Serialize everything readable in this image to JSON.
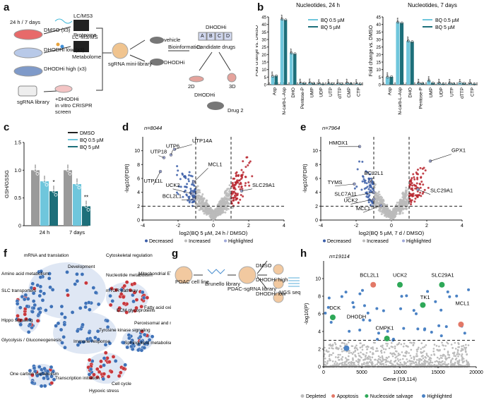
{
  "panels": {
    "a": "a",
    "b": "b",
    "c": "c",
    "d": "d",
    "e": "e",
    "f": "f",
    "g": "g",
    "h": "h"
  },
  "panel_a": {
    "timepoints": "24 h / 7 days",
    "groups": [
      "DMSO (x3)",
      "DHODHi low (x3)",
      "DHODHi high (x3)"
    ],
    "platforms": [
      "LC/MS3",
      "LC-MS/MS"
    ],
    "outputs": [
      "Proteome",
      "Metabolome"
    ],
    "library": "sgRNA library",
    "screen": [
      "+DHODHi",
      "in vitro CRISPR",
      "screen"
    ],
    "mini_library": "sgRNA mini-library",
    "arms": [
      "vehicle",
      "DHODHi"
    ],
    "bioinformatics": "Bioinformatics",
    "dhodhi": "DHODHi",
    "abcd": [
      "A",
      "B",
      "C",
      "D"
    ],
    "candidate": "Candidate drugs",
    "models": [
      "2D",
      "3D"
    ],
    "drug2": "Drug 2",
    "dhodhi2": "DHODHi"
  },
  "colors": {
    "bq05": "#6fc6dc",
    "bq5": "#1d6f7a",
    "dmso": "#222222",
    "grey": "#9a9a9a",
    "decreased": "#3b5ea8",
    "increased": "#b8262f",
    "highlighted": "#9fa9d8",
    "apoptosis": "#e27867",
    "salvage": "#2ea858",
    "highlight_h": "#4b82c4",
    "depleted": "#bbbbbb"
  },
  "chart_data": [
    {
      "id": "b-24h",
      "type": "bar",
      "title": "Nucleotides, 24 h",
      "ylabel": "Fold change vs. DMSO",
      "ylim": [
        0,
        45
      ],
      "yticks": [
        "0",
        "5",
        "10",
        "15",
        "20",
        "25",
        "30",
        "35",
        "40",
        "45"
      ],
      "categories": [
        "Asp",
        "N-carb-L-Asp",
        "DHO",
        "Pentose-P",
        "UMP",
        "UDP",
        "UTP",
        "dTTP",
        "CMP",
        "CTP"
      ],
      "series": [
        {
          "name": "BQ 0.5 µM",
          "values": [
            5.5,
            43.5,
            21,
            1.0,
            1.1,
            0.6,
            0.7,
            0.6,
            0.9,
            0.6
          ]
        },
        {
          "name": "BQ 5 µM",
          "values": [
            5.8,
            43.0,
            20.5,
            0.9,
            0.8,
            0.4,
            0.5,
            0.5,
            0.7,
            0.4
          ]
        }
      ],
      "stars": [
        "***",
        "***",
        "***",
        "***",
        "***",
        "***",
        "***",
        "***",
        "***",
        "***"
      ],
      "reference_line": 1
    },
    {
      "id": "b-7d",
      "type": "bar",
      "title": "Nucleotides, 7 days",
      "ylabel": "Fold change vs. DMSO",
      "ylim": [
        0,
        45
      ],
      "yticks": [
        "0",
        "5",
        "10",
        "15",
        "20",
        "25",
        "30",
        "35",
        "40",
        "45"
      ],
      "categories": [
        "Asp",
        "N-carb-L-Asp",
        "DHO",
        "Pentose-P",
        "UMP",
        "UDP",
        "UTP",
        "dTTP",
        "CTP"
      ],
      "series": [
        {
          "name": "BQ 0.5 µM",
          "values": [
            5.0,
            41.5,
            29.0,
            0.9,
            2.6,
            0.9,
            0.8,
            1.3,
            0.6
          ]
        },
        {
          "name": "BQ 5 µM",
          "values": [
            5.2,
            41.0,
            28.5,
            0.8,
            1.1,
            0.5,
            0.6,
            0.8,
            0.4
          ]
        }
      ],
      "stars": [
        "***",
        "***",
        "***",
        "***",
        "***",
        "***",
        "***",
        "**",
        "***"
      ],
      "reference_line": 1
    },
    {
      "id": "c",
      "type": "bar",
      "ylabel": "GSH/GSSG",
      "ylim": [
        0,
        1.5
      ],
      "yticks": [
        "0",
        "0.5",
        "1.0",
        "1.5"
      ],
      "categories": [
        "24 h",
        "7 days"
      ],
      "series": [
        {
          "name": "DMSO",
          "values": [
            1.0,
            1.0
          ]
        },
        {
          "name": "BQ 0.5 µM",
          "values": [
            0.8,
            0.75
          ]
        },
        {
          "name": "BQ 5 µM",
          "values": [
            0.62,
            0.35
          ]
        }
      ],
      "stars": [
        "",
        "",
        "*",
        "",
        "",
        "**"
      ]
    },
    {
      "id": "d",
      "type": "scatter",
      "n_label": "n=8044",
      "xlabel": "log2(BQ 5 µM, 24 h / DMSO)",
      "ylabel": "-log10(FDR)",
      "xlim": [
        -4,
        4
      ],
      "ylim": [
        0,
        12
      ],
      "xticks": [
        "-4",
        "-2",
        "0",
        "2",
        "4"
      ],
      "yticks": [
        "0",
        "2",
        "4",
        "6",
        "8",
        "10"
      ],
      "labels": [
        "UTP14A",
        "UTP6",
        "UTP18",
        "MCL1",
        "UTP11L",
        "UCK2",
        "BCL2L1",
        "SLC29A1"
      ],
      "legend": [
        "Decreased",
        "Increased",
        "Highlighted"
      ]
    },
    {
      "id": "e",
      "type": "scatter",
      "n_label": "n=7964",
      "xlabel": "log2(BQ 5 µM, 7 d / DMSO)",
      "ylabel": "-log10(FDR)",
      "xlim": [
        -4,
        4
      ],
      "ylim": [
        0,
        12
      ],
      "xticks": [
        "-4",
        "-2",
        "0",
        "2",
        "4"
      ],
      "yticks": [
        "0",
        "2",
        "4",
        "6",
        "8",
        "10"
      ],
      "labels": [
        "HMOX1",
        "GPX1",
        "BCL2L1",
        "TYMS",
        "SLC7A11",
        "SLC29A1",
        "UCK2",
        "MCL1"
      ],
      "legend": [
        "Decreased",
        "Increased",
        "Highlighted"
      ]
    },
    {
      "id": "h",
      "type": "scatter",
      "n_label": "n=19114",
      "xlabel": "Gene (19,114)",
      "ylabel": "-log10(P)",
      "xlim": [
        0,
        20000
      ],
      "ylim": [
        0,
        12
      ],
      "xticks": [
        "0",
        "5000",
        "10000",
        "15000",
        "20000"
      ],
      "yticks": [
        "0",
        "2",
        "4",
        "6",
        "8",
        "10"
      ],
      "labels": [
        "BCL2L1",
        "UCK2",
        "SLC29A1",
        "DCK",
        "TK1",
        "MCL1",
        "DHODH",
        "CMPK1"
      ],
      "legend": [
        "Depleted",
        "Apoptosis",
        "Nucleoside salvage",
        "Highlighted"
      ]
    }
  ],
  "panel_f": {
    "labels": [
      "mRNA and translation",
      "Amino acid metabolism",
      "Development",
      "Cytoskeletal regulation",
      "Nucleotide metabolism",
      "Mitochondrial ETC",
      "SLC transporters",
      "mTOR pathway",
      "Fatty acid oxidation",
      "Hippo signaling",
      "ECM glycoproteins",
      "Peroxisomal and mitochondrial protein import",
      "Glycolysis / Gluconeogenesis",
      "Immune response",
      "Tyrosine kinase signaling",
      "Sphingolipid metabolism",
      "One carbon metabolism",
      "Transcription initiation",
      "Cell cycle",
      "Hypoxic stress"
    ]
  },
  "panel_g": {
    "cells": "PDAC cell line",
    "library": "Brunello library",
    "lib2": "PDAC-sgRNA library",
    "arms": [
      "DMSO",
      "DHODHi high",
      "DHODHi low"
    ],
    "seq": "NGS seq"
  }
}
